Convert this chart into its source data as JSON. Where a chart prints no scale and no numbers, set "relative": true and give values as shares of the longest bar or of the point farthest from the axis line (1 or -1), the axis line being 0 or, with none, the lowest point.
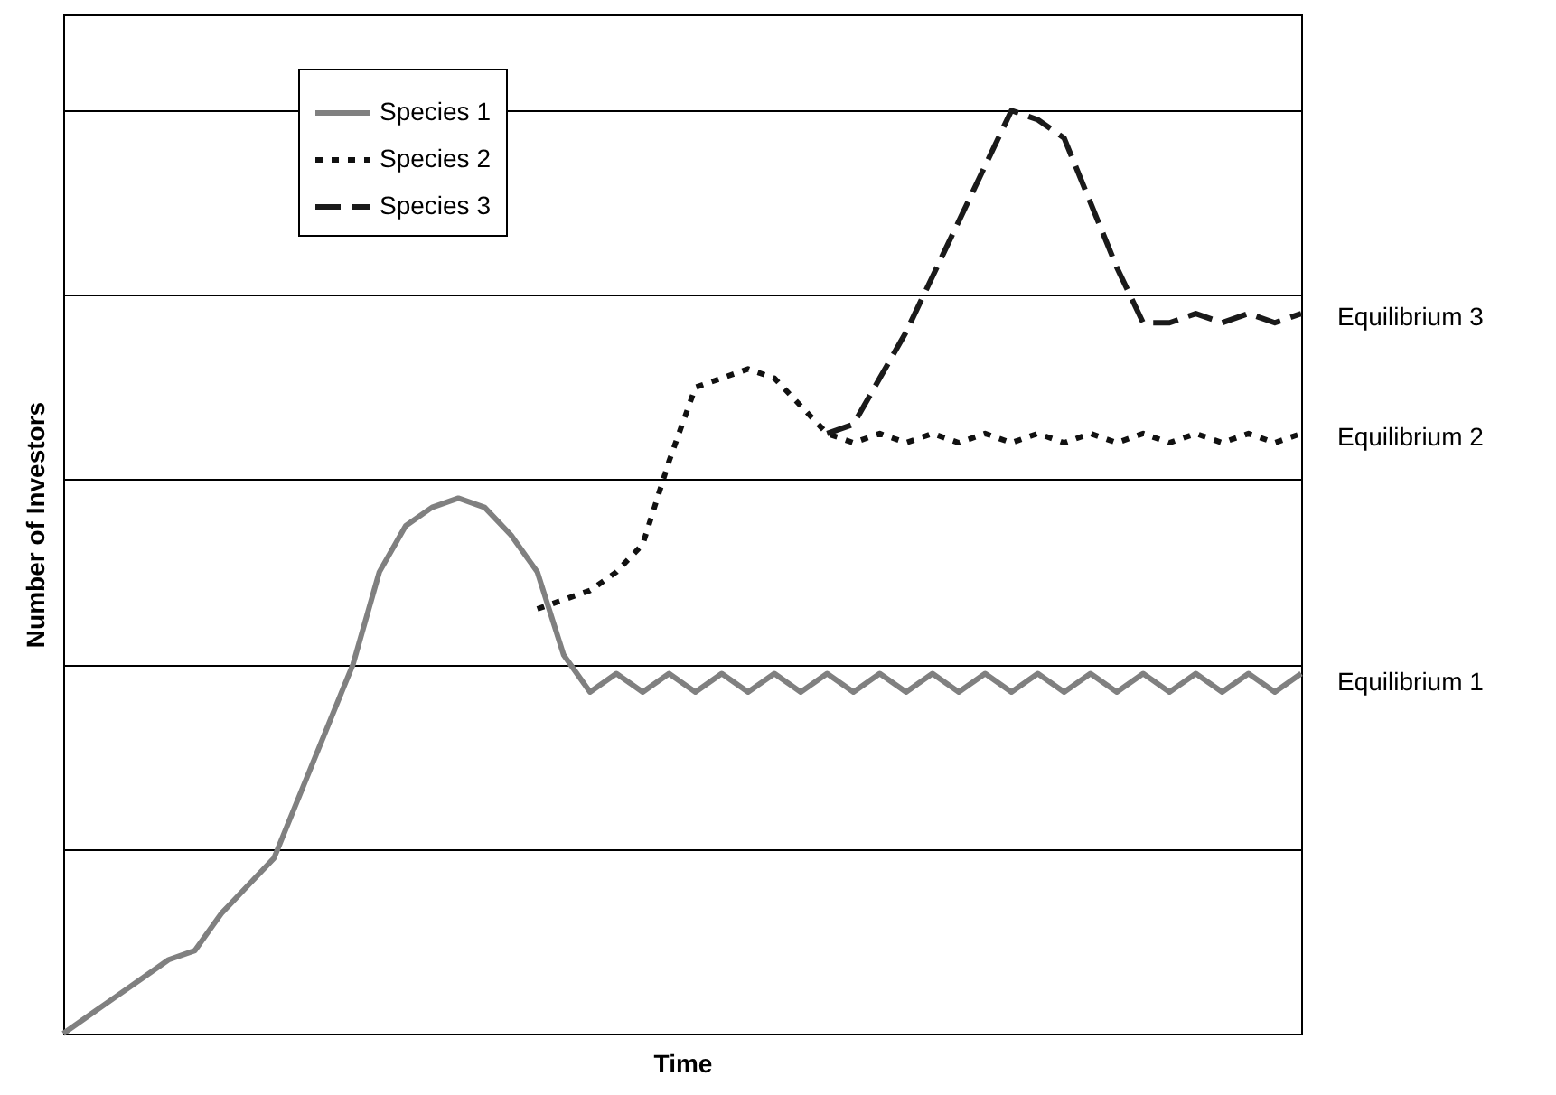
{
  "chart_data": {
    "type": "line",
    "relative": true,
    "xlabel": "Time",
    "ylabel": "Number of Investors",
    "grid": "y",
    "legend": "top left",
    "marker": "none",
    "categories": [
      null,
      null,
      null,
      null,
      null,
      null,
      null,
      null,
      null,
      null,
      null,
      null,
      null,
      null,
      null,
      null,
      null,
      null,
      null,
      null,
      null,
      null,
      null,
      null,
      null,
      null,
      null,
      null,
      null,
      null,
      null,
      null,
      null,
      null,
      null,
      null,
      null,
      null,
      null,
      null,
      null,
      null,
      null,
      null,
      null,
      null,
      null,
      null
    ],
    "series": [
      {
        "name": "Species 1",
        "color": "#808080",
        "line_style": "solid",
        "values": [
          0,
          0.02,
          0.04,
          0.06,
          0.08,
          0.09,
          0.13,
          0.16,
          0.19,
          0.26,
          0.33,
          0.4,
          0.5,
          0.55,
          0.57,
          0.58,
          0.57,
          0.54,
          0.5,
          0.41,
          0.37,
          0.39,
          0.37,
          0.39,
          0.37,
          0.39,
          0.37,
          0.39,
          0.37,
          0.39,
          0.37,
          0.39,
          0.37,
          0.39,
          0.37,
          0.39,
          0.37,
          0.39,
          0.37,
          0.39,
          0.37,
          0.39,
          0.37,
          0.39,
          0.37,
          0.39,
          0.37,
          0.39
        ]
      },
      {
        "name": "Species 2",
        "color": "#111111",
        "line_style": "dotted",
        "values": [
          null,
          null,
          null,
          null,
          null,
          null,
          null,
          null,
          null,
          null,
          null,
          null,
          null,
          null,
          null,
          null,
          null,
          null,
          0.46,
          0.47,
          0.48,
          0.5,
          0.53,
          0.62,
          0.7,
          0.71,
          0.72,
          0.71,
          0.68,
          0.65,
          0.64,
          0.65,
          0.64,
          0.65,
          0.64,
          0.65,
          0.64,
          0.65,
          0.64,
          0.65,
          0.64,
          0.65,
          0.64,
          0.65,
          0.64,
          0.65,
          0.64,
          0.65
        ]
      },
      {
        "name": "Species 3",
        "color": "#1a1a1a",
        "line_style": "dashed",
        "values": [
          null,
          null,
          null,
          null,
          null,
          null,
          null,
          null,
          null,
          null,
          null,
          null,
          null,
          null,
          null,
          null,
          null,
          null,
          null,
          null,
          null,
          null,
          null,
          null,
          null,
          null,
          null,
          null,
          null,
          0.65,
          0.66,
          0.71,
          0.76,
          0.82,
          0.88,
          0.94,
          1.0,
          0.99,
          0.97,
          0.9,
          0.83,
          0.77,
          0.77,
          0.78,
          0.77,
          0.78,
          0.77,
          0.78
        ]
      }
    ],
    "annotations": [
      "Equilibrium 3",
      "Equilibrium 2",
      "Equilibrium 1"
    ]
  }
}
